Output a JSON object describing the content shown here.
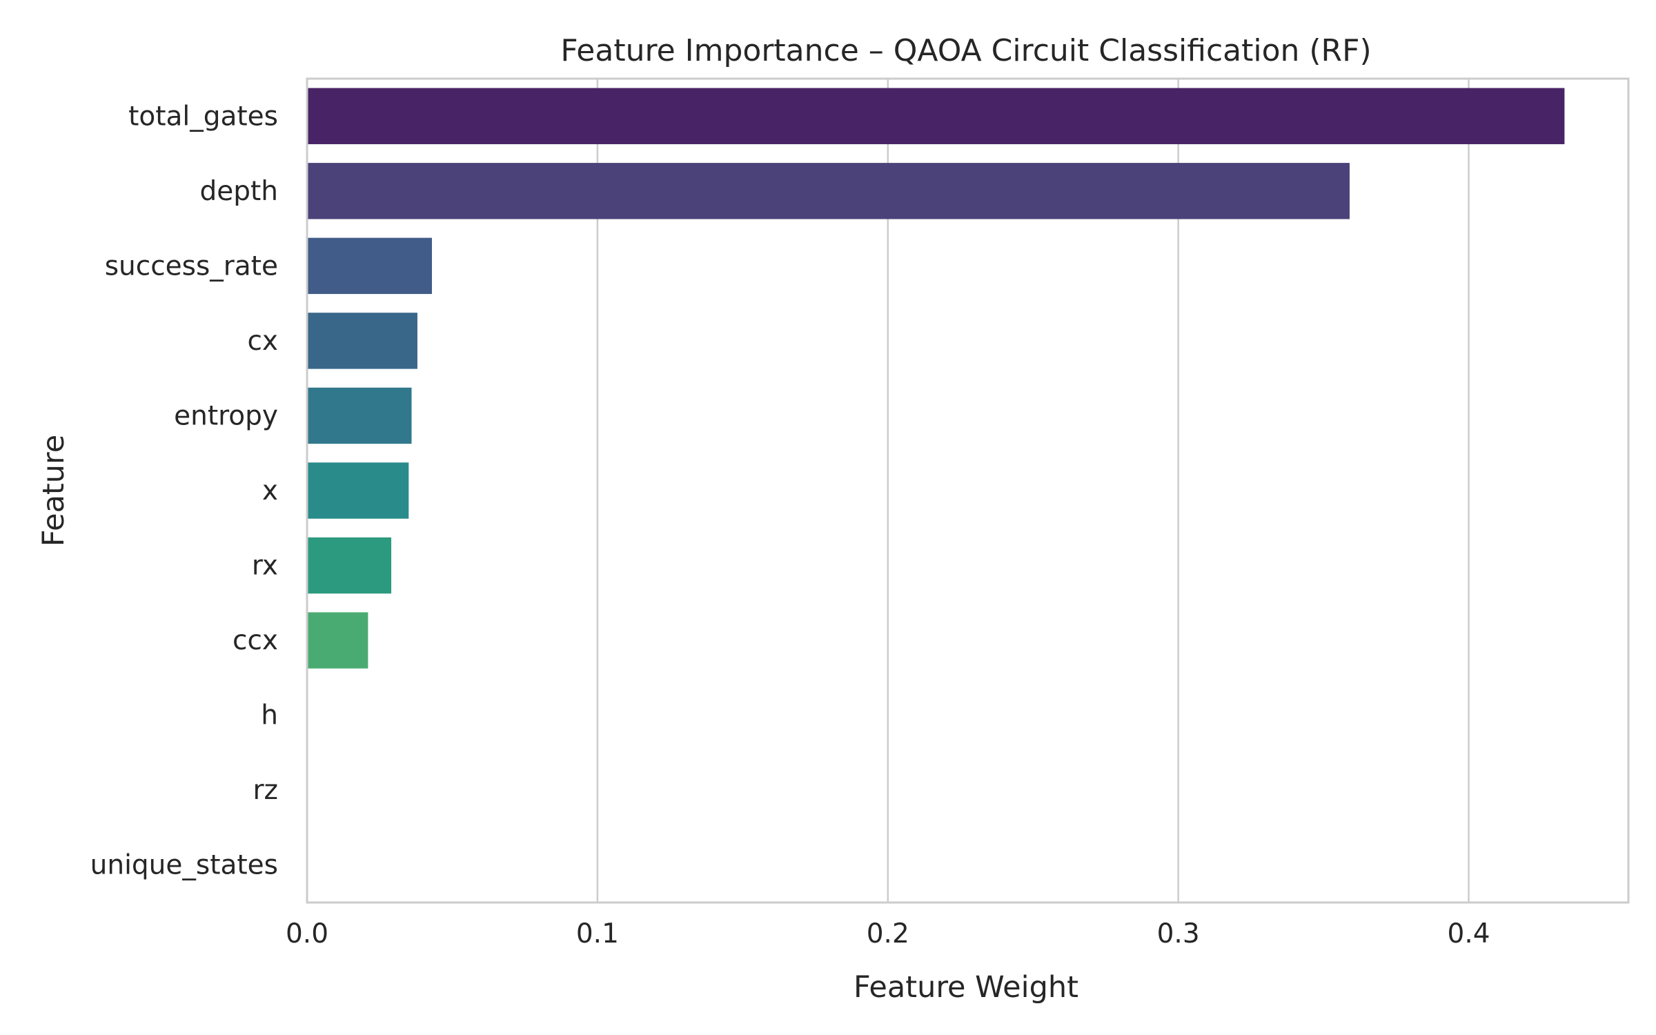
{
  "chart_data": {
    "type": "bar",
    "orientation": "horizontal",
    "title": "Feature Importance – QAOA Circuit Classification (RF)",
    "xlabel": "Feature Weight",
    "ylabel": "Feature",
    "categories": [
      "total_gates",
      "depth",
      "success_rate",
      "cx",
      "entropy",
      "x",
      "rx",
      "ccx",
      "h",
      "rz",
      "unique_states"
    ],
    "values": [
      0.433,
      0.359,
      0.043,
      0.038,
      0.036,
      0.035,
      0.029,
      0.021,
      0.0,
      0.0,
      0.0
    ],
    "xlim": [
      0,
      0.455
    ],
    "xticks": [
      0.0,
      0.1,
      0.2,
      0.3,
      0.4
    ],
    "xtick_labels": [
      "0.0",
      "0.1",
      "0.2",
      "0.3",
      "0.4"
    ],
    "grid": "vertical",
    "colors": [
      "#482466",
      "#4a4279",
      "#415c88",
      "#38678a",
      "#32788c",
      "#2a8b8b",
      "#2c9a7e",
      "#4aab72",
      "#6ebb62",
      "#95c856",
      "#bed646"
    ],
    "legend": "none"
  }
}
